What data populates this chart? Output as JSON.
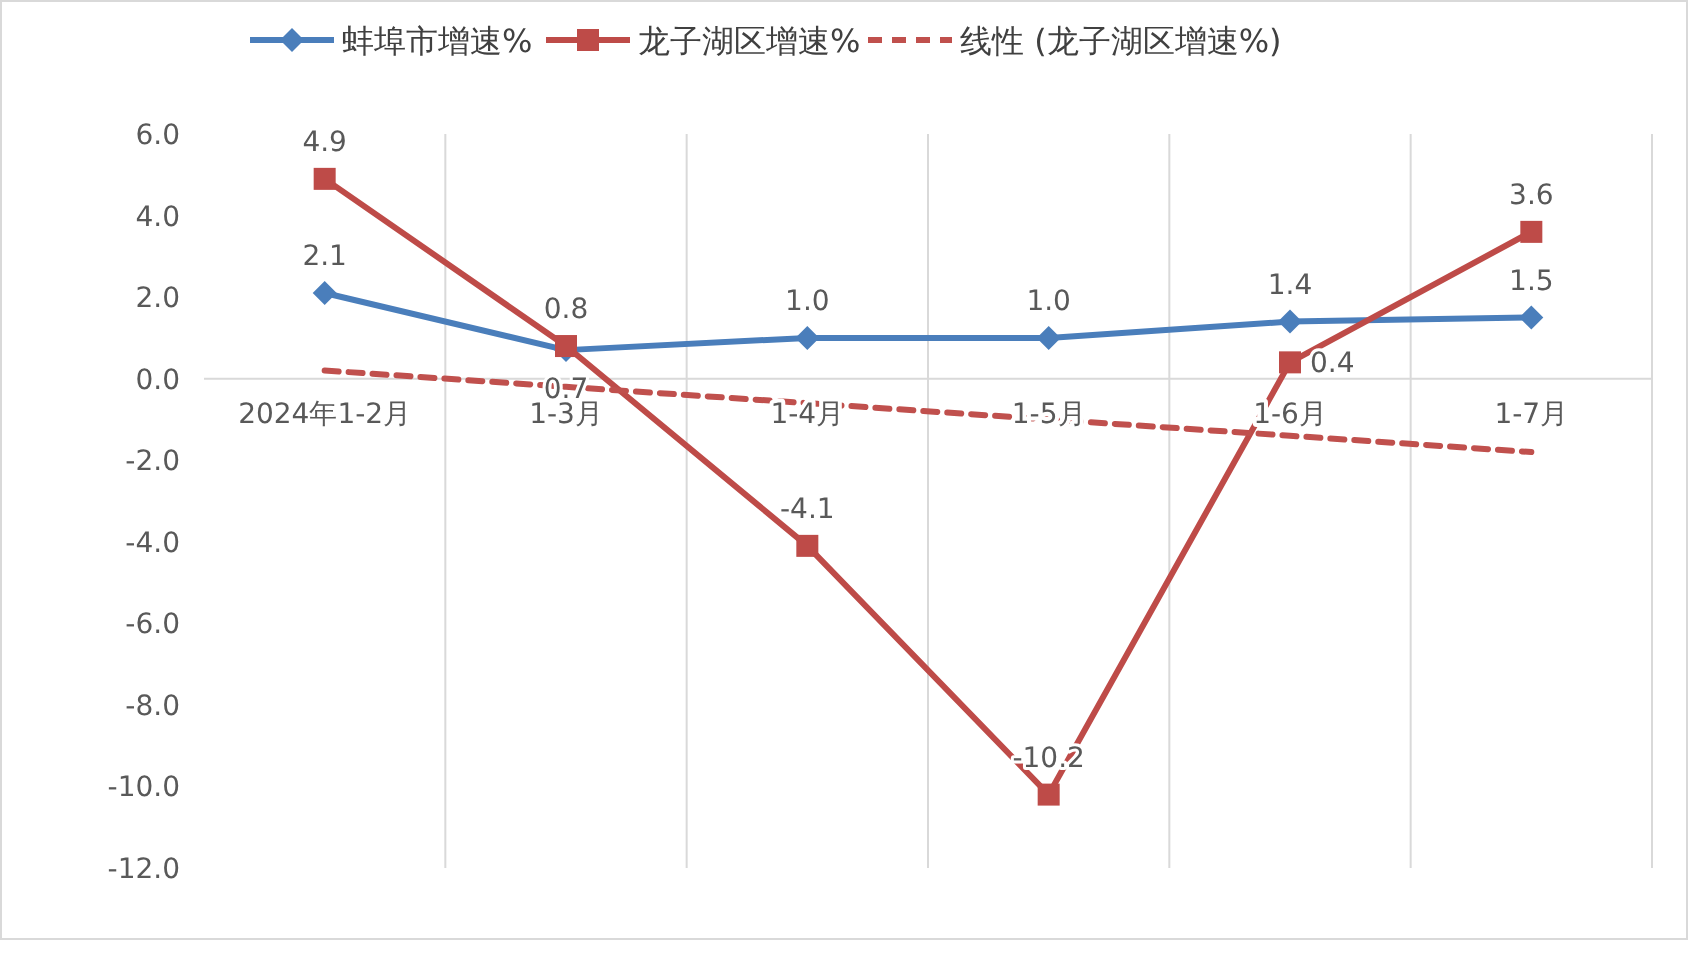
{
  "chart_data": {
    "type": "line",
    "categories": [
      "2024年1-2月",
      "1-3月",
      "1-4月",
      "1-5月",
      "1-6月",
      "1-7月"
    ],
    "ylim": [
      -12,
      6
    ],
    "yticks": [
      {
        "value": -12,
        "label": "-12.0"
      },
      {
        "value": -10,
        "label": "-10.0"
      },
      {
        "value": -8,
        "label": "-8.0"
      },
      {
        "value": -6,
        "label": "-6.0"
      },
      {
        "value": -4,
        "label": "-4.0"
      },
      {
        "value": -2,
        "label": "-2.0"
      },
      {
        "value": 0,
        "label": "0.0"
      },
      {
        "value": 2,
        "label": "2.0"
      },
      {
        "value": 4,
        "label": "4.0"
      },
      {
        "value": 6,
        "label": "6.0"
      }
    ],
    "grid": "x",
    "legend": "top",
    "data_labels": true,
    "series": [
      {
        "name": "蚌埠市增速%",
        "color": "#4a7ebb",
        "marker": "diamond",
        "line_style": "solid",
        "values": [
          2.1,
          0.7,
          1.0,
          1.0,
          1.4,
          1.5
        ],
        "value_labels": [
          "2.1",
          "0.7",
          "1.0",
          "1.0",
          "1.4",
          "1.5"
        ]
      },
      {
        "name": "龙子湖区增速%",
        "color": "#be4b48",
        "marker": "square",
        "line_style": "solid",
        "values": [
          4.9,
          0.8,
          -4.1,
          -10.2,
          0.4,
          3.6
        ],
        "value_labels": [
          "4.9",
          "0.8",
          "-4.1",
          "-10.2",
          "0.4",
          "3.6"
        ]
      },
      {
        "name": "线性 (龙子湖区增速%)",
        "color": "#c0504d",
        "marker": "none",
        "line_style": "dashed",
        "values": [
          0.2,
          -0.2,
          -0.6,
          -1.0,
          -1.4,
          -1.8
        ],
        "value_labels": [
          null,
          null,
          null,
          null,
          null,
          null
        ]
      }
    ]
  }
}
